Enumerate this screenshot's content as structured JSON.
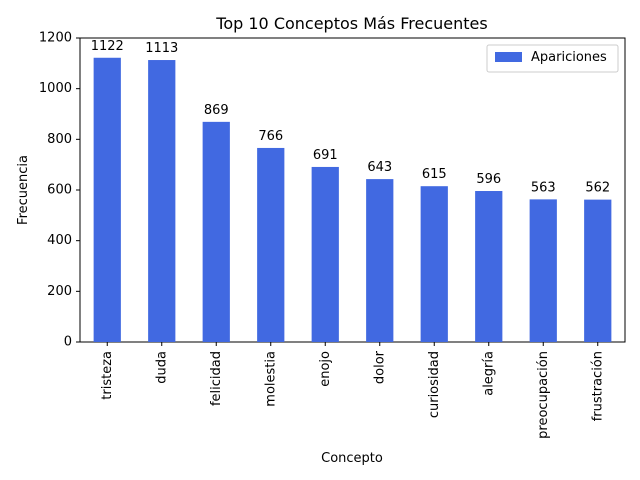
{
  "chart_data": {
    "type": "bar",
    "title": "Top 10 Conceptos Más Frecuentes",
    "xlabel": "Concepto",
    "ylabel": "Frecuencia",
    "categories": [
      "tristeza",
      "duda",
      "felicidad",
      "molestia",
      "enojo",
      "dolor",
      "curiosidad",
      "alegría",
      "preocupación",
      "frustración"
    ],
    "series": [
      {
        "name": "Apariciones",
        "color": "#4169e1",
        "values": [
          1122,
          1113,
          869,
          766,
          691,
          643,
          615,
          596,
          563,
          562
        ]
      }
    ],
    "ylim": [
      0,
      1200
    ],
    "yticks": [
      0,
      200,
      400,
      600,
      800,
      1000,
      1200
    ],
    "grid": false,
    "legend_position": "top-right",
    "data_labels": true
  }
}
